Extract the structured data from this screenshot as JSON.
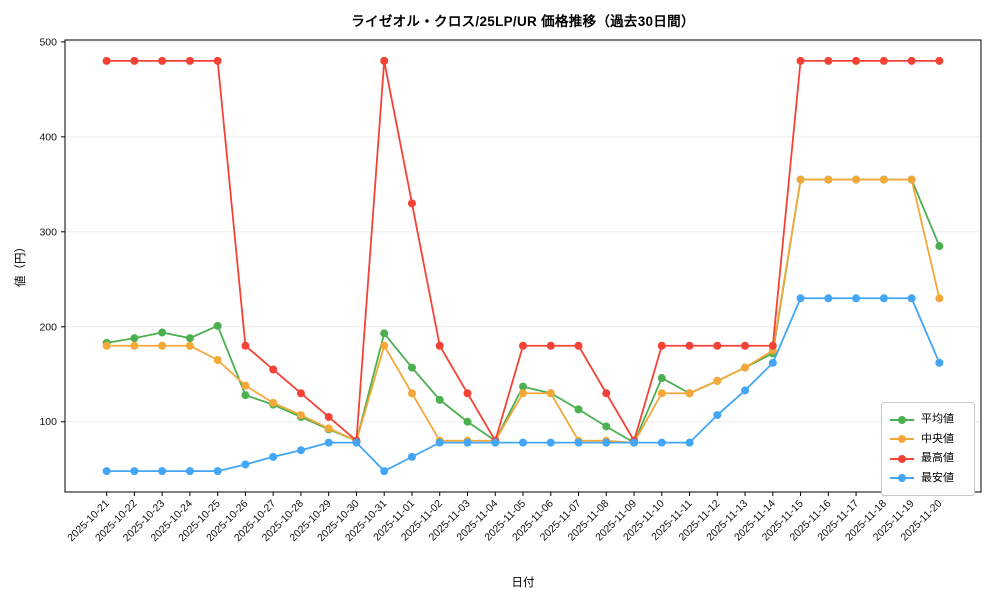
{
  "figure": {
    "title": "ライゼオル・クロス/25LP/UR 価格推移（過去30日間）",
    "xlabel": "日付",
    "ylabel": "値（円）"
  },
  "chart_data": {
    "type": "line",
    "title": "ライゼオル・クロス/25LP/UR 価格推移（過去30日間）",
    "xlabel": "日付",
    "ylabel": "値（円）",
    "x": [
      "2025-10-21",
      "2025-10-22",
      "2025-10-23",
      "2025-10-24",
      "2025-10-25",
      "2025-10-26",
      "2025-10-27",
      "2025-10-28",
      "2025-10-29",
      "2025-10-30",
      "2025-10-31",
      "2025-11-01",
      "2025-11-02",
      "2025-11-03",
      "2025-11-04",
      "2025-11-05",
      "2025-11-06",
      "2025-11-07",
      "2025-11-08",
      "2025-11-09",
      "2025-11-10",
      "2025-11-11",
      "2025-11-12",
      "2025-11-13",
      "2025-11-14",
      "2025-11-15",
      "2025-11-16",
      "2025-11-17",
      "2025-11-18",
      "2025-11-19",
      "2025-11-20"
    ],
    "series": [
      {
        "name": "平均値",
        "color": "#4caf50",
        "values": [
          183,
          188,
          194,
          188,
          201,
          128,
          118,
          105,
          92,
          80,
          193,
          157,
          123,
          100,
          80,
          137,
          130,
          113,
          95,
          78,
          146,
          130,
          143,
          157,
          172,
          355,
          355,
          355,
          355,
          355,
          285
        ]
      },
      {
        "name": "中央値",
        "color": "#f5a83a",
        "values": [
          180,
          180,
          180,
          180,
          165,
          138,
          120,
          107,
          93,
          80,
          180,
          130,
          80,
          80,
          80,
          130,
          130,
          80,
          80,
          78,
          130,
          130,
          143,
          157,
          175,
          355,
          355,
          355,
          355,
          355,
          230
        ]
      },
      {
        "name": "最高値",
        "color": "#f44336",
        "values": [
          480,
          480,
          480,
          480,
          480,
          180,
          155,
          130,
          105,
          80,
          480,
          330,
          180,
          130,
          80,
          180,
          180,
          180,
          130,
          80,
          180,
          180,
          180,
          180,
          180,
          480,
          480,
          480,
          480,
          480,
          480
        ]
      },
      {
        "name": "最安値",
        "color": "#42a5f5",
        "values": [
          48,
          48,
          48,
          48,
          48,
          55,
          63,
          70,
          78,
          78,
          48,
          63,
          78,
          78,
          78,
          78,
          78,
          78,
          78,
          78,
          78,
          78,
          107,
          133,
          162,
          230,
          230,
          230,
          230,
          230,
          162
        ]
      }
    ],
    "ylim": [
      26,
      502
    ],
    "yticks": [
      100,
      200,
      300,
      400,
      500
    ],
    "grid": true,
    "legend_position": "lower-right"
  }
}
